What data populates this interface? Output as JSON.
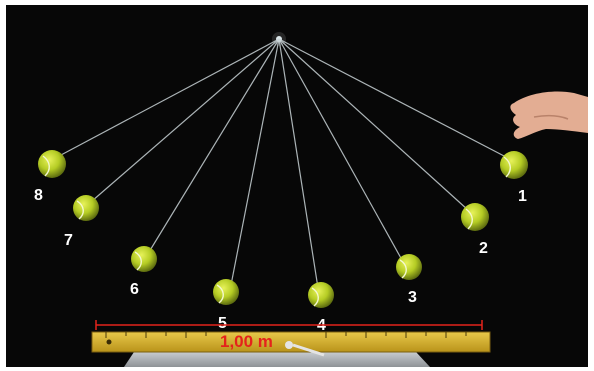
{
  "scene": {
    "description_labels": [
      "1",
      "2",
      "3",
      "4",
      "5",
      "6",
      "7",
      "8"
    ],
    "scale_label": "1,00 m",
    "colors": {
      "background": "#070707",
      "string": "#c9d3d6",
      "ball": "#b8d22a",
      "label": "#ffffff",
      "scale_text": "#e4231b",
      "ruler": "#d8b62a"
    },
    "icons": [
      "tennis-ball-icon",
      "hand-icon",
      "ruler-icon",
      "pivot-point-icon"
    ]
  }
}
